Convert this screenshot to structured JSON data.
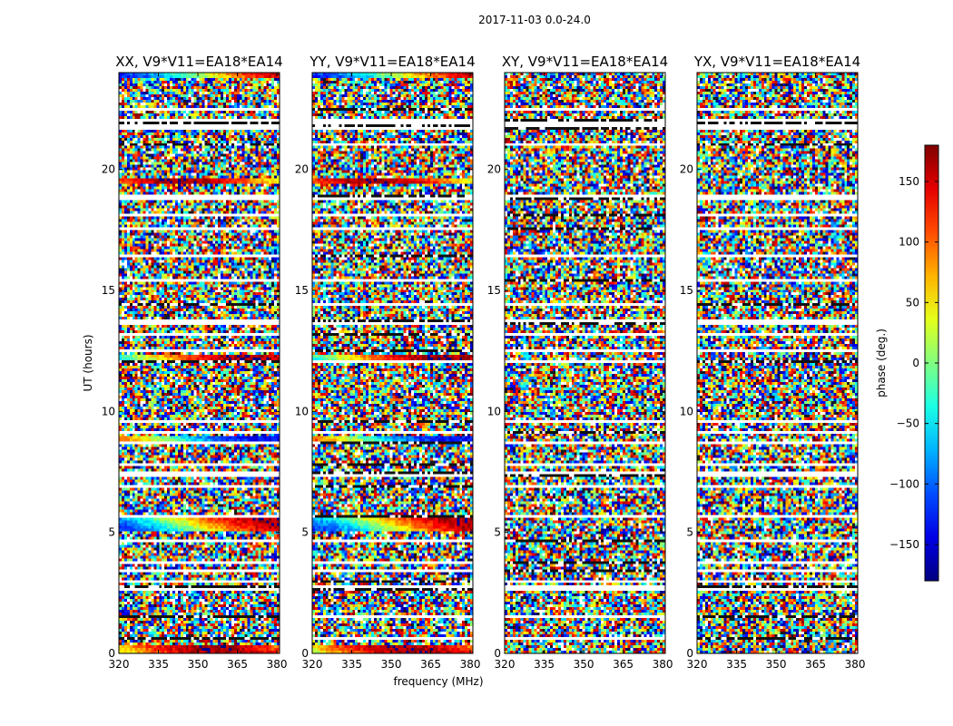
{
  "figure": {
    "suptitle": "2017-11-03 0.0-24.0"
  },
  "chart_data": {
    "type": "heatmap",
    "suptitle": "2017-11-03 0.0-24.0",
    "xlabel": "frequency (MHz)",
    "ylabel": "UT (hours)",
    "xlim": [
      320,
      381
    ],
    "ylim": [
      0,
      24
    ],
    "xticks": [
      320,
      335,
      350,
      365,
      380
    ],
    "yticks": [
      0,
      5,
      10,
      15,
      20
    ],
    "panels": [
      {
        "title": "XX, V9*V11=EA18*EA14",
        "polarization": "XX"
      },
      {
        "title": "YY, V9*V11=EA18*EA14",
        "polarization": "YY"
      },
      {
        "title": "XY, V9*V11=EA18*EA14",
        "polarization": "XY"
      },
      {
        "title": "YX, V9*V11=EA18*EA14",
        "polarization": "YX"
      }
    ],
    "colorbar": {
      "label": "phase (deg.)",
      "range": [
        -180,
        180
      ],
      "ticks": [
        150,
        100,
        50,
        0,
        -50,
        -100,
        -150
      ],
      "tick_labels": [
        "150",
        "100",
        "50",
        "0",
        "−50",
        "−100",
        "−150"
      ],
      "colormap": "jet"
    },
    "flagged_time_bands_hours": [
      [
        0.55,
        0.65
      ],
      [
        1.45,
        1.55
      ],
      [
        2.55,
        2.75
      ],
      [
        2.95,
        3.05
      ],
      [
        3.35,
        3.45
      ],
      [
        3.7,
        3.8
      ],
      [
        4.6,
        4.7
      ],
      [
        5.15,
        5.2
      ],
      [
        5.65,
        5.75
      ],
      [
        6.8,
        6.9
      ],
      [
        7.3,
        7.5
      ],
      [
        7.75,
        7.85
      ],
      [
        8.6,
        8.7
      ],
      [
        9.1,
        9.2
      ],
      [
        9.5,
        9.6
      ],
      [
        12.0,
        12.1
      ],
      [
        12.5,
        12.6
      ],
      [
        13.1,
        13.2
      ],
      [
        13.55,
        13.85
      ],
      [
        14.35,
        14.45
      ],
      [
        15.4,
        15.5
      ],
      [
        16.4,
        16.5
      ],
      [
        17.0,
        17.1
      ],
      [
        17.5,
        17.6
      ],
      [
        18.1,
        18.2
      ],
      [
        18.75,
        18.95
      ],
      [
        20.95,
        21.05
      ],
      [
        21.6,
        22.05
      ],
      [
        22.4,
        22.5
      ]
    ],
    "coherent_time_bands_hours": [
      {
        "range": [
          0.05,
          0.3
        ],
        "panels": [
          "XX",
          "YY"
        ]
      },
      {
        "range": [
          5.1,
          5.6
        ],
        "panels": [
          "XX",
          "YY"
        ]
      },
      {
        "range": [
          8.75,
          9.0
        ],
        "panels": [
          "XX",
          "YY"
        ]
      },
      {
        "range": [
          12.0,
          12.3
        ],
        "panels": [
          "XX",
          "YY"
        ]
      },
      {
        "range": [
          13.6,
          13.75
        ],
        "panels": [
          "XX",
          "YY"
        ]
      },
      {
        "range": [
          19.35,
          19.6
        ],
        "panels": [
          "XX",
          "YY"
        ]
      },
      {
        "range": [
          23.8,
          23.95
        ],
        "panels": [
          "XX",
          "YY"
        ]
      }
    ]
  }
}
